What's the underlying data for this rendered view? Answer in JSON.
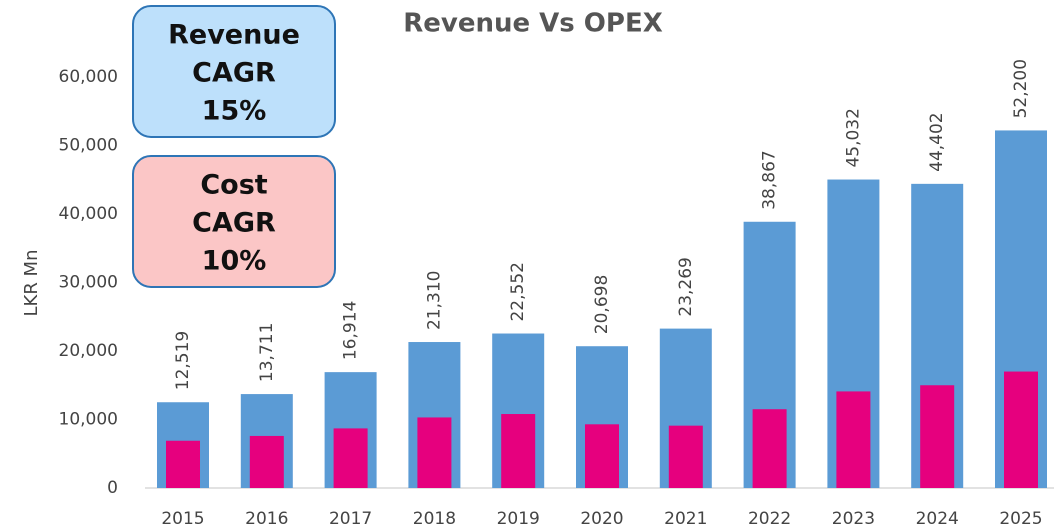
{
  "chart_data": {
    "type": "bar",
    "title": "Revenue Vs OPEX",
    "y_label": "LKR Mn",
    "categories": [
      "2015",
      "2016",
      "2017",
      "2018",
      "2019",
      "2020",
      "2021",
      "2022",
      "2023",
      "2024",
      "2025"
    ],
    "series": [
      {
        "color": "#5b9bd5",
        "values": [
          12519,
          13711,
          16914,
          21310,
          22552,
          20698,
          23269,
          38867,
          45032,
          44402,
          52200
        ],
        "value_labels": [
          "12,519",
          "13,711",
          "16,914",
          "21,310",
          "22,552",
          "20,698",
          "23,269",
          "38,867",
          "45,032",
          "44,402",
          "52,200"
        ]
      },
      {
        "color": "#e6007e",
        "values": [
          6900,
          7600,
          8700,
          10300,
          10800,
          9300,
          9100,
          11500,
          14100,
          15000,
          17000
        ]
      }
    ],
    "ylim": [
      0,
      60000
    ],
    "yticks": [
      0,
      {
        "value": 10000,
        "label": "10,000"
      },
      {
        "value": 20000,
        "label": "20,000"
      },
      {
        "value": 30000,
        "label": "30,000"
      },
      {
        "value": 40000,
        "label": "40,000"
      },
      {
        "value": 50000,
        "label": "50,000"
      },
      {
        "value": 60000,
        "label": "60,000"
      }
    ],
    "grid": false,
    "annotations": [
      {
        "lines": [
          "Revenue",
          "CAGR",
          "15%"
        ],
        "color": "#bde0fb"
      },
      {
        "lines": [
          "Cost",
          "CAGR",
          "10%"
        ],
        "color": "#fbc6c6"
      }
    ]
  }
}
